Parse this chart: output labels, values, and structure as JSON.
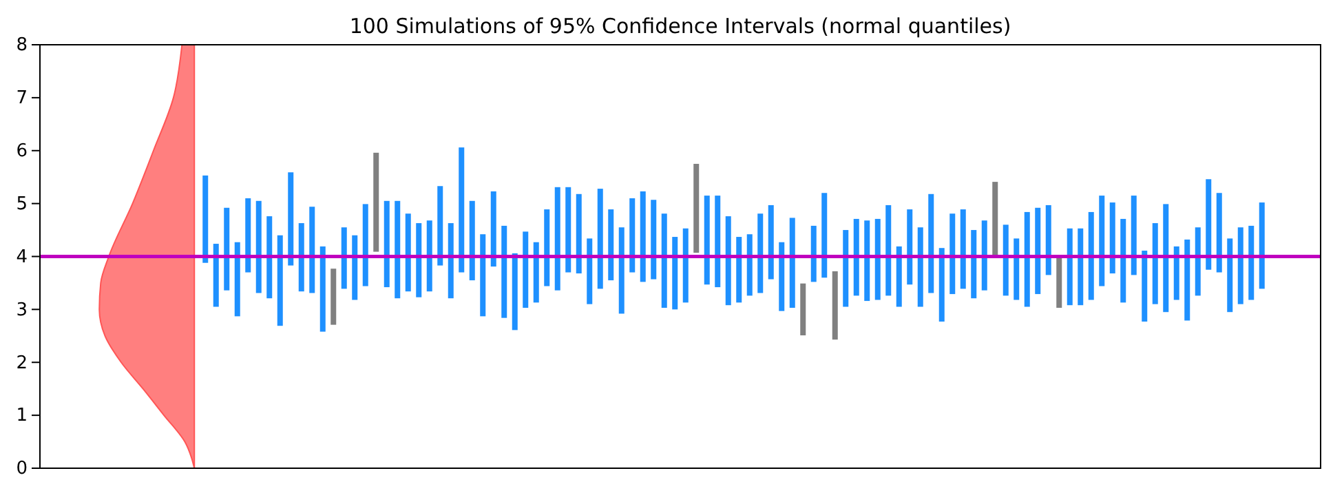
{
  "chart_data": {
    "type": "bar",
    "title": "100 Simulations of 95% Confidence Intervals (normal quantiles)",
    "categories": [
      null,
      null,
      null,
      null,
      null,
      null,
      null,
      null,
      null,
      null,
      null,
      null,
      null,
      null,
      null,
      null,
      null,
      null,
      null,
      null,
      null,
      null,
      null,
      null,
      null,
      null,
      null,
      null,
      null,
      null,
      null,
      null,
      null,
      null,
      null,
      null,
      null,
      null,
      null,
      null,
      null,
      null,
      null,
      null,
      null,
      null,
      null,
      null,
      null,
      null,
      null,
      null,
      null,
      null,
      null,
      null,
      null,
      null,
      null,
      null,
      null,
      null,
      null,
      null,
      null,
      null,
      null,
      null,
      null,
      null,
      null,
      null,
      null,
      null,
      null,
      null,
      null,
      null,
      null,
      null,
      null,
      null,
      null,
      null,
      null,
      null,
      null,
      null,
      null,
      null,
      null,
      null,
      null,
      null,
      null,
      null,
      null,
      null,
      null,
      null,
      null,
      null,
      null,
      null,
      null,
      null,
      null,
      null,
      null,
      null,
      null,
      null,
      null,
      null,
      null,
      null,
      null,
      null,
      null,
      null
    ],
    "base": [
      null,
      null,
      null,
      null,
      null,
      null,
      null,
      null,
      null,
      null,
      null,
      null,
      null,
      null,
      null,
      3.88,
      3.05,
      3.36,
      2.87,
      3.7,
      3.31,
      3.21,
      2.69,
      3.83,
      3.34,
      3.31,
      2.58,
      2.71,
      3.39,
      3.18,
      3.44,
      4.09,
      3.42,
      3.21,
      3.34,
      3.23,
      3.34,
      3.83,
      3.21,
      3.7,
      3.55,
      2.87,
      3.81,
      2.84,
      2.61,
      3.03,
      3.13,
      3.44,
      3.36,
      3.7,
      3.68,
      3.1,
      3.39,
      3.55,
      2.92,
      3.7,
      3.52,
      3.57,
      3.03,
      3.0,
      3.13,
      4.07,
      3.47,
      3.42,
      3.08,
      3.13,
      3.26,
      3.31,
      3.57,
      2.97,
      3.03,
      2.51,
      3.52,
      3.6,
      2.43,
      3.05,
      3.26,
      3.16,
      3.18,
      3.26,
      3.05,
      3.47,
      3.05,
      3.31,
      2.77,
      3.29,
      3.39,
      3.21,
      3.36,
      3.99,
      3.26,
      3.18,
      3.05,
      3.29,
      3.65,
      3.03,
      3.08,
      3.08,
      3.18,
      3.44,
      3.68,
      3.13,
      3.65,
      2.77,
      3.1,
      2.95,
      3.18,
      2.79,
      3.26,
      3.75,
      3.7,
      2.95,
      3.1,
      3.18,
      3.39,
      null,
      null,
      null,
      null,
      null
    ],
    "values": [
      null,
      null,
      null,
      null,
      null,
      null,
      null,
      null,
      null,
      null,
      null,
      null,
      null,
      null,
      null,
      1.65,
      1.19,
      1.56,
      1.4,
      1.4,
      1.74,
      1.55,
      1.71,
      1.76,
      1.29,
      1.63,
      1.61,
      1.06,
      1.16,
      1.22,
      1.55,
      1.87,
      1.63,
      1.84,
      1.47,
      1.4,
      1.34,
      1.5,
      1.42,
      2.36,
      1.5,
      1.55,
      1.42,
      1.74,
      1.45,
      1.44,
      1.14,
      1.45,
      1.95,
      1.61,
      1.5,
      1.24,
      1.89,
      1.34,
      1.63,
      1.4,
      1.71,
      1.5,
      1.78,
      1.37,
      1.4,
      1.68,
      1.68,
      1.73,
      1.68,
      1.24,
      1.16,
      1.5,
      1.4,
      1.3,
      1.7,
      0.98,
      1.06,
      1.6,
      1.29,
      1.45,
      1.45,
      1.52,
      1.53,
      1.71,
      1.14,
      1.42,
      1.5,
      1.87,
      1.39,
      1.52,
      1.5,
      1.29,
      1.32,
      1.42,
      1.34,
      1.16,
      1.79,
      1.63,
      1.32,
      1.0,
      1.45,
      1.45,
      1.66,
      1.71,
      1.34,
      1.58,
      1.5,
      1.34,
      1.53,
      2.04,
      1.01,
      1.53,
      1.29,
      1.71,
      1.5,
      1.39,
      1.45,
      1.4,
      1.63,
      null,
      null,
      null,
      null,
      null
    ],
    "colors": [
      null,
      null,
      null,
      null,
      null,
      null,
      null,
      null,
      null,
      null,
      null,
      null,
      null,
      null,
      null,
      "#1e90ff",
      "#1e90ff",
      "#1e90ff",
      "#1e90ff",
      "#1e90ff",
      "#1e90ff",
      "#1e90ff",
      "#1e90ff",
      "#1e90ff",
      "#1e90ff",
      "#1e90ff",
      "#1e90ff",
      "#808080",
      "#1e90ff",
      "#1e90ff",
      "#1e90ff",
      "#808080",
      "#1e90ff",
      "#1e90ff",
      "#1e90ff",
      "#1e90ff",
      "#1e90ff",
      "#1e90ff",
      "#1e90ff",
      "#1e90ff",
      "#1e90ff",
      "#1e90ff",
      "#1e90ff",
      "#1e90ff",
      "#1e90ff",
      "#1e90ff",
      "#1e90ff",
      "#1e90ff",
      "#1e90ff",
      "#1e90ff",
      "#1e90ff",
      "#1e90ff",
      "#1e90ff",
      "#1e90ff",
      "#1e90ff",
      "#1e90ff",
      "#1e90ff",
      "#1e90ff",
      "#1e90ff",
      "#1e90ff",
      "#1e90ff",
      "#808080",
      "#1e90ff",
      "#1e90ff",
      "#1e90ff",
      "#1e90ff",
      "#1e90ff",
      "#1e90ff",
      "#1e90ff",
      "#1e90ff",
      "#1e90ff",
      "#808080",
      "#1e90ff",
      "#1e90ff",
      "#808080",
      "#1e90ff",
      "#1e90ff",
      "#1e90ff",
      "#1e90ff",
      "#1e90ff",
      "#1e90ff",
      "#1e90ff",
      "#1e90ff",
      "#1e90ff",
      "#1e90ff",
      "#1e90ff",
      "#1e90ff",
      "#1e90ff",
      "#1e90ff",
      "#808080",
      "#1e90ff",
      "#1e90ff",
      "#1e90ff",
      "#1e90ff",
      "#1e90ff",
      "#808080",
      "#1e90ff",
      "#1e90ff",
      "#1e90ff",
      "#1e90ff",
      "#1e90ff",
      "#1e90ff",
      "#1e90ff",
      "#1e90ff",
      "#1e90ff",
      "#1e90ff",
      "#1e90ff",
      "#1e90ff",
      "#1e90ff",
      "#1e90ff",
      "#1e90ff",
      "#1e90ff",
      "#1e90ff",
      "#1e90ff",
      "#1e90ff",
      null,
      null,
      null,
      null,
      null
    ],
    "ylim": [
      0,
      8
    ],
    "yticks": [
      0,
      1,
      2,
      3,
      4,
      5,
      6,
      7,
      8
    ],
    "tick_labels": "y",
    "ref_lines": [
      {
        "axis": "y",
        "value": 4,
        "color": "#bf00bf"
      }
    ]
  }
}
